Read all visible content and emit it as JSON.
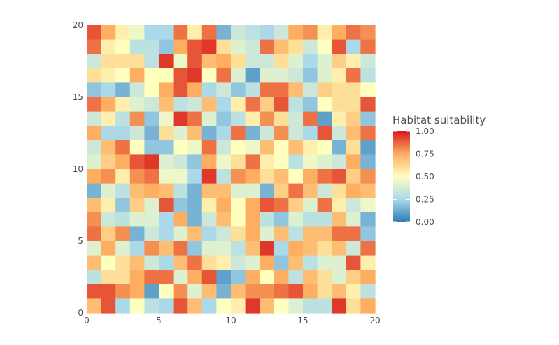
{
  "chart_data": {
    "type": "heatmap",
    "title": "",
    "xlabel": "",
    "ylabel": "",
    "xlim": [
      0,
      20
    ],
    "ylim": [
      0,
      20
    ],
    "x_ticks": [
      "0",
      "5",
      "10",
      "15",
      "20"
    ],
    "y_ticks": [
      "0",
      "5",
      "10",
      "15",
      "20"
    ],
    "grid": false,
    "legend": {
      "title": "Habitat suitability",
      "placement": "right",
      "ticks": [
        "0.00",
        "0.25",
        "0.50",
        "0.75",
        "1.00"
      ],
      "range": [
        0,
        1
      ]
    },
    "colors": {
      "low": "#2c7bb6",
      "low_mid": "#abd9e9",
      "mid": "#ffffbf",
      "high_mid": "#fdae61",
      "high": "#d7191c"
    },
    "values": [
      [
        0.9,
        0.75,
        0.55,
        0.45,
        0.25,
        0.25,
        0.85,
        0.55,
        0.85,
        0.15,
        0.35,
        0.3,
        0.25,
        0.35,
        0.75,
        0.8,
        0.55,
        0.75,
        0.85,
        0.8
      ],
      [
        0.85,
        0.55,
        0.5,
        0.3,
        0.3,
        0.2,
        0.75,
        0.9,
        0.95,
        0.6,
        0.4,
        0.35,
        0.85,
        0.7,
        0.6,
        0.35,
        0.5,
        0.9,
        0.25,
        0.85
      ],
      [
        0.35,
        0.6,
        0.6,
        0.6,
        0.3,
        0.95,
        0.45,
        0.9,
        0.7,
        0.75,
        0.6,
        0.35,
        0.35,
        0.6,
        0.4,
        0.25,
        0.4,
        0.65,
        0.55,
        0.35
      ],
      [
        0.6,
        0.55,
        0.5,
        0.75,
        0.5,
        0.5,
        0.9,
        0.95,
        0.5,
        0.85,
        0.4,
        0.1,
        0.4,
        0.4,
        0.35,
        0.2,
        0.4,
        0.55,
        0.85,
        0.3
      ],
      [
        0.2,
        0.25,
        0.15,
        0.35,
        0.5,
        0.75,
        0.9,
        0.75,
        0.25,
        0.35,
        0.2,
        0.3,
        0.85,
        0.85,
        0.7,
        0.35,
        0.65,
        0.6,
        0.6,
        0.5
      ],
      [
        0.85,
        0.75,
        0.55,
        0.4,
        0.35,
        0.7,
        0.3,
        0.35,
        0.7,
        0.25,
        0.55,
        0.85,
        0.65,
        0.9,
        0.3,
        0.2,
        0.5,
        0.6,
        0.6,
        0.9
      ],
      [
        0.35,
        0.55,
        0.3,
        0.8,
        0.2,
        0.45,
        0.95,
        0.85,
        0.4,
        0.2,
        0.3,
        0.55,
        0.8,
        0.6,
        0.35,
        0.85,
        0.1,
        0.55,
        0.65,
        0.2
      ],
      [
        0.75,
        0.25,
        0.25,
        0.35,
        0.15,
        0.6,
        0.4,
        0.7,
        0.15,
        0.25,
        0.85,
        0.15,
        0.35,
        0.8,
        0.35,
        0.25,
        0.9,
        0.35,
        0.7,
        0.85
      ],
      [
        0.35,
        0.7,
        0.85,
        0.5,
        0.2,
        0.2,
        0.5,
        0.45,
        0.85,
        0.35,
        0.5,
        0.45,
        0.7,
        0.5,
        0.7,
        0.55,
        0.5,
        0.15,
        0.6,
        0.1
      ],
      [
        0.4,
        0.65,
        0.75,
        0.9,
        0.95,
        0.4,
        0.35,
        0.2,
        0.75,
        0.45,
        0.6,
        0.85,
        0.55,
        0.5,
        0.3,
        0.45,
        0.4,
        0.35,
        0.75,
        0.15
      ],
      [
        0.75,
        0.8,
        0.55,
        0.8,
        0.85,
        0.45,
        0.45,
        0.25,
        0.95,
        0.3,
        0.8,
        0.75,
        0.6,
        0.7,
        0.5,
        0.75,
        0.85,
        0.9,
        0.65,
        0.8
      ],
      [
        0.15,
        0.4,
        0.3,
        0.7,
        0.75,
        0.7,
        0.3,
        0.15,
        0.7,
        0.7,
        0.4,
        0.4,
        0.15,
        0.65,
        0.85,
        0.7,
        0.35,
        0.6,
        0.75,
        0.7
      ],
      [
        0.7,
        0.55,
        0.2,
        0.65,
        0.4,
        0.9,
        0.2,
        0.15,
        0.55,
        0.75,
        0.5,
        0.75,
        0.9,
        0.85,
        0.65,
        0.4,
        0.85,
        0.55,
        0.35,
        0.45
      ],
      [
        0.8,
        0.35,
        0.3,
        0.4,
        0.4,
        0.25,
        0.75,
        0.15,
        0.35,
        0.7,
        0.5,
        0.75,
        0.3,
        0.2,
        0.4,
        0.3,
        0.3,
        0.7,
        0.4,
        0.15
      ],
      [
        0.85,
        0.65,
        0.8,
        0.15,
        0.35,
        0.25,
        0.4,
        0.7,
        0.25,
        0.35,
        0.6,
        0.75,
        0.4,
        0.7,
        0.3,
        0.7,
        0.7,
        0.85,
        0.85,
        0.2
      ],
      [
        0.4,
        0.75,
        0.4,
        0.25,
        0.8,
        0.7,
        0.85,
        0.2,
        0.4,
        0.4,
        0.3,
        0.7,
        0.95,
        0.25,
        0.75,
        0.7,
        0.6,
        0.7,
        0.35,
        0.85
      ],
      [
        0.7,
        0.5,
        0.6,
        0.7,
        0.35,
        0.25,
        0.7,
        0.85,
        0.6,
        0.55,
        0.35,
        0.4,
        0.75,
        0.2,
        0.7,
        0.3,
        0.4,
        0.4,
        0.9,
        0.55
      ],
      [
        0.3,
        0.6,
        0.6,
        0.75,
        0.85,
        0.85,
        0.4,
        0.75,
        0.9,
        0.1,
        0.2,
        0.75,
        0.5,
        0.75,
        0.3,
        0.7,
        0.6,
        0.4,
        0.65,
        0.75
      ],
      [
        0.9,
        0.9,
        0.8,
        0.75,
        0.1,
        0.5,
        0.8,
        0.4,
        0.7,
        0.15,
        0.7,
        0.8,
        0.8,
        0.85,
        0.9,
        0.75,
        0.6,
        0.7,
        0.55,
        0.3
      ],
      [
        0.7,
        0.9,
        0.25,
        0.5,
        0.3,
        0.25,
        0.9,
        0.7,
        0.25,
        0.5,
        0.55,
        0.95,
        0.7,
        0.5,
        0.4,
        0.3,
        0.3,
        0.95,
        0.6,
        0.75
      ]
    ]
  }
}
